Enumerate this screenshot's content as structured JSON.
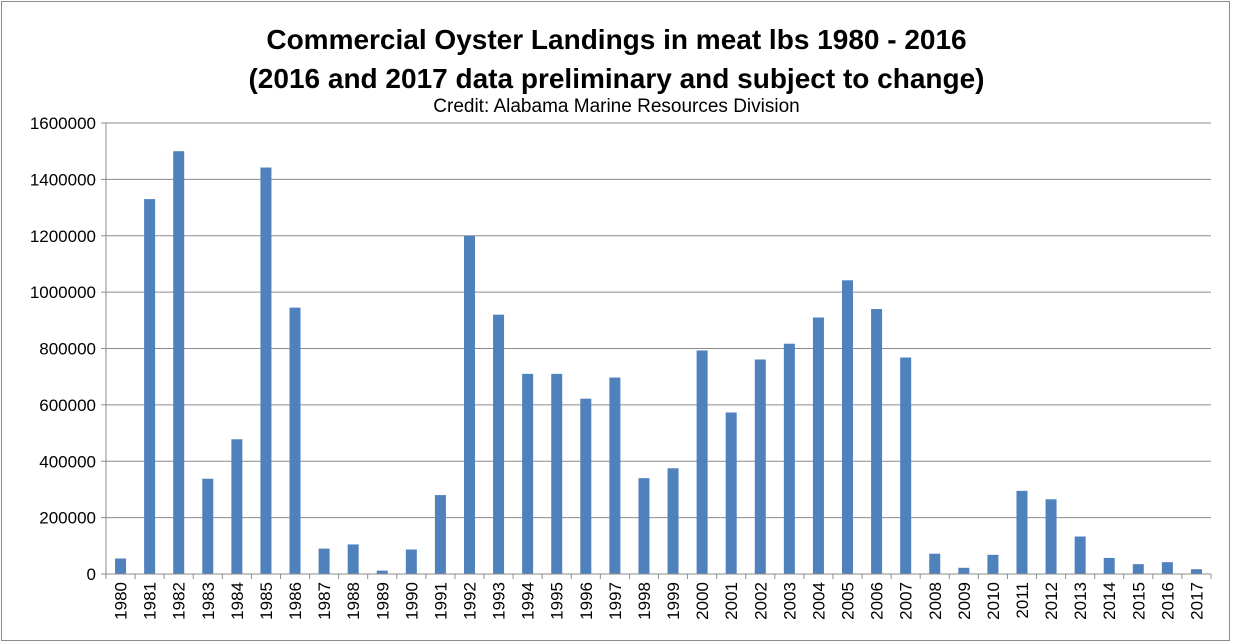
{
  "chart_data": {
    "type": "bar",
    "title_line1": "Commercial Oyster Landings in meat lbs 1980 - 2016",
    "title_line2": "(2016 and 2017 data preliminary and subject to change)",
    "credit": "Credit: Alabama Marine Resources Division",
    "xlabel": "",
    "ylabel": "",
    "ylim": [
      0,
      1600000
    ],
    "yticks": [
      0,
      200000,
      400000,
      600000,
      800000,
      1000000,
      1200000,
      1400000,
      1600000
    ],
    "grid": true,
    "legend": "none",
    "bar_color": "#4f81bd",
    "categories": [
      "1980",
      "1981",
      "1982",
      "1983",
      "1984",
      "1985",
      "1986",
      "1987",
      "1988",
      "1989",
      "1990",
      "1991",
      "1992",
      "1993",
      "1994",
      "1995",
      "1996",
      "1997",
      "1998",
      "1999",
      "2000",
      "2001",
      "2002",
      "2003",
      "2004",
      "2005",
      "2006",
      "2007",
      "2008",
      "2009",
      "2010",
      "2011",
      "2012",
      "2013",
      "2014",
      "2015",
      "2016",
      "2017"
    ],
    "values": [
      55000,
      1330000,
      1500000,
      338000,
      478000,
      1442000,
      945000,
      90000,
      105000,
      12000,
      87000,
      280000,
      1200000,
      920000,
      710000,
      710000,
      622000,
      697000,
      340000,
      375000,
      793000,
      573000,
      761000,
      817000,
      910000,
      1042000,
      940000,
      768000,
      72000,
      22000,
      68000,
      295000,
      265000,
      133000,
      57000,
      35000,
      42000,
      17000
    ]
  }
}
